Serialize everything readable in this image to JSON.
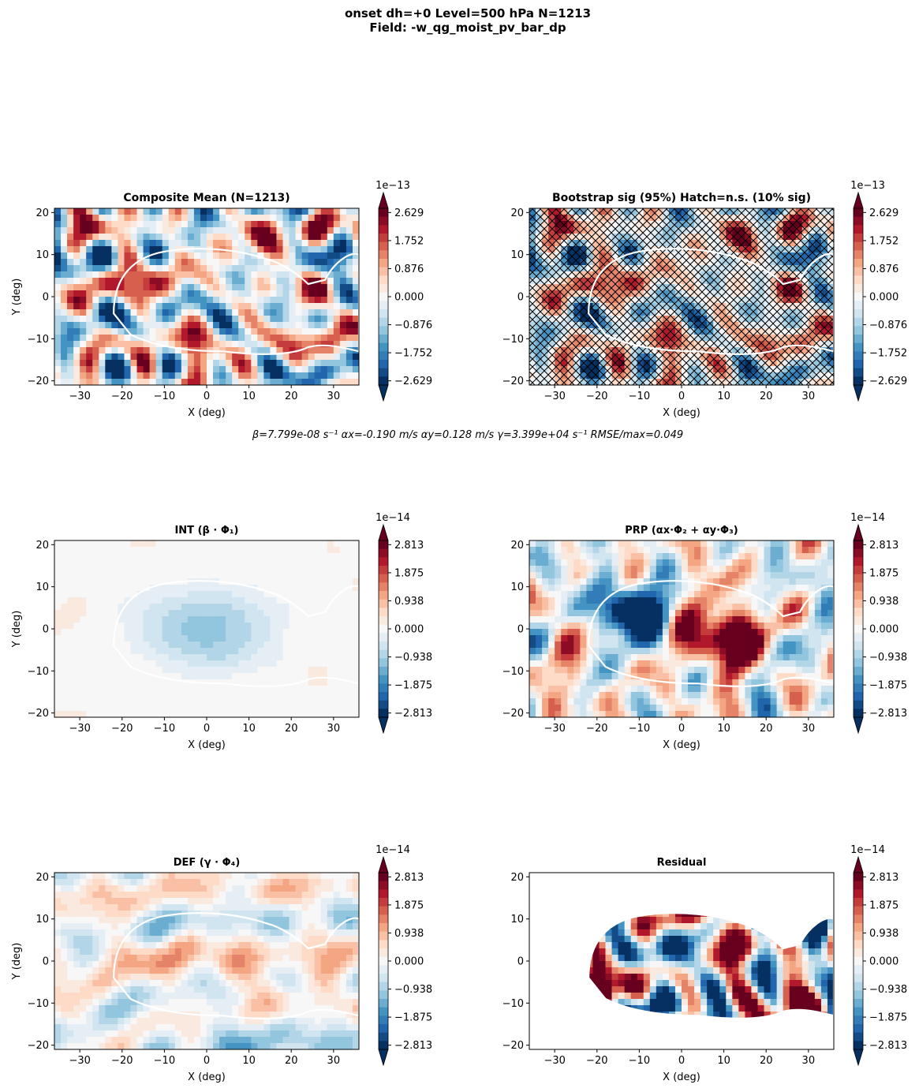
{
  "figure": {
    "title_line1": "onset  dh=+0   Level=500 hPa   N=1213",
    "title_line2": "Field: -w_qg_moist_pv_bar_dp",
    "fit_summary": "β=7.799e-08 s⁻¹   αx=-0.190 m/s   αy=0.128 m/s   γ=3.399e+04 s⁻¹   RMSE/max=0.049"
  },
  "colors": {
    "cmap": [
      "#053061",
      "#2166ac",
      "#4393c3",
      "#92c5de",
      "#d1e5f0",
      "#f7f7f7",
      "#fddbc7",
      "#f4a582",
      "#d6604d",
      "#b2182b",
      "#67001f"
    ],
    "contour": "#ffffff",
    "hatch": "#000000"
  },
  "chart_data": [
    {
      "type": "heatmap",
      "title": "Composite Mean  (N=1213)",
      "xlabel": "X (deg)",
      "ylabel": "Y (deg)",
      "xlim": [
        -36,
        36
      ],
      "ylim": [
        -21,
        21
      ],
      "xticks": [
        -30,
        -20,
        -10,
        0,
        10,
        20,
        30
      ],
      "yticks": [
        -20,
        -10,
        0,
        10,
        20
      ],
      "colorbar": {
        "offset": "1e−13",
        "range": [
          -2.629,
          2.629
        ],
        "tick_values": [
          2.629,
          1.752,
          0.876,
          0.0,
          -0.876,
          -1.752,
          -2.629
        ],
        "tick_labels": [
          "2.629",
          "1.752",
          "0.876",
          "0.000",
          "−0.876",
          "−1.752",
          "−2.629"
        ]
      },
      "pattern": "noise",
      "amplitude": 0.85,
      "hatched": false,
      "masked": false,
      "seed": 11
    },
    {
      "type": "heatmap",
      "title": "Bootstrap sig (95%)  Hatch=n.s.  (10% sig)",
      "xlabel": "X (deg)",
      "ylabel": "",
      "xlim": [
        -36,
        36
      ],
      "ylim": [
        -21,
        21
      ],
      "xticks": [
        -30,
        -20,
        -10,
        0,
        10,
        20,
        30
      ],
      "yticks": [
        -20,
        -10,
        0,
        10,
        20
      ],
      "colorbar": {
        "offset": "1e−13",
        "range": [
          -2.629,
          2.629
        ],
        "tick_values": [
          2.629,
          1.752,
          0.876,
          0.0,
          -0.876,
          -1.752,
          -2.629
        ],
        "tick_labels": [
          "2.629",
          "1.752",
          "0.876",
          "0.000",
          "−0.876",
          "−1.752",
          "−2.629"
        ]
      },
      "pattern": "noise",
      "amplitude": 0.75,
      "hatched": true,
      "masked": false,
      "seed": 11
    },
    {
      "type": "heatmap",
      "title": "INT (β · Φ₁)",
      "xlabel": "X (deg)",
      "ylabel": "Y (deg)",
      "xlim": [
        -36,
        36
      ],
      "ylim": [
        -21,
        21
      ],
      "xticks": [
        -30,
        -20,
        -10,
        0,
        10,
        20,
        30
      ],
      "yticks": [
        -20,
        -10,
        0,
        10,
        20
      ],
      "colorbar": {
        "offset": "1e−14",
        "range": [
          -2.813,
          2.813
        ],
        "tick_values": [
          2.813,
          1.875,
          0.938,
          0.0,
          -0.938,
          -1.875,
          -2.813
        ],
        "tick_labels": [
          "2.813",
          "1.875",
          "0.938",
          "0.000",
          "−0.938",
          "−1.875",
          "−2.813"
        ]
      },
      "pattern": "gaussian_low",
      "amplitude": 0.5,
      "hatched": false,
      "masked": false,
      "seed": 3
    },
    {
      "type": "heatmap",
      "title": "PRP (αx·Φ₂ + αy·Φ₃)",
      "xlabel": "X (deg)",
      "ylabel": "",
      "xlim": [
        -36,
        36
      ],
      "ylim": [
        -21,
        21
      ],
      "xticks": [
        -30,
        -20,
        -10,
        0,
        10,
        20,
        30
      ],
      "yticks": [
        -20,
        -10,
        0,
        10,
        20
      ],
      "colorbar": {
        "offset": "1e−14",
        "range": [
          -2.813,
          2.813
        ],
        "tick_values": [
          2.813,
          1.875,
          0.938,
          0.0,
          -0.938,
          -1.875,
          -2.813
        ],
        "tick_labels": [
          "2.813",
          "1.875",
          "0.938",
          "0.000",
          "−0.938",
          "−1.875",
          "−2.813"
        ]
      },
      "pattern": "dipole",
      "amplitude": 1.0,
      "hatched": false,
      "masked": false,
      "seed": 7
    },
    {
      "type": "heatmap",
      "title": "DEF (γ · Φ₄)",
      "xlabel": "X (deg)",
      "ylabel": "Y (deg)",
      "xlim": [
        -36,
        36
      ],
      "ylim": [
        -21,
        21
      ],
      "xticks": [
        -30,
        -20,
        -10,
        0,
        10,
        20,
        30
      ],
      "yticks": [
        -20,
        -10,
        0,
        10,
        20
      ],
      "colorbar": {
        "offset": "1e−14",
        "range": [
          -2.813,
          2.813
        ],
        "tick_values": [
          2.813,
          1.875,
          0.938,
          0.0,
          -0.938,
          -1.875,
          -2.813
        ],
        "tick_labels": [
          "2.813",
          "1.875",
          "0.938",
          "0.000",
          "−0.938",
          "−1.875",
          "−2.813"
        ]
      },
      "pattern": "noise",
      "amplitude": 0.35,
      "hatched": false,
      "masked": false,
      "seed": 19
    },
    {
      "type": "heatmap",
      "title": "Residual",
      "xlabel": "X (deg)",
      "ylabel": "",
      "xlim": [
        -36,
        36
      ],
      "ylim": [
        -21,
        21
      ],
      "xticks": [
        -30,
        -20,
        -10,
        0,
        10,
        20,
        30
      ],
      "yticks": [
        -20,
        -10,
        0,
        10,
        20
      ],
      "colorbar": {
        "offset": "1e−14",
        "range": [
          -2.813,
          2.813
        ],
        "tick_values": [
          2.813,
          1.875,
          0.938,
          0.0,
          -0.938,
          -1.875,
          -2.813
        ],
        "tick_labels": [
          "2.813",
          "1.875",
          "0.938",
          "0.000",
          "−0.938",
          "−1.875",
          "−2.813"
        ]
      },
      "pattern": "noise",
      "amplitude": 1.4,
      "hatched": false,
      "masked": true,
      "seed": 23
    }
  ]
}
